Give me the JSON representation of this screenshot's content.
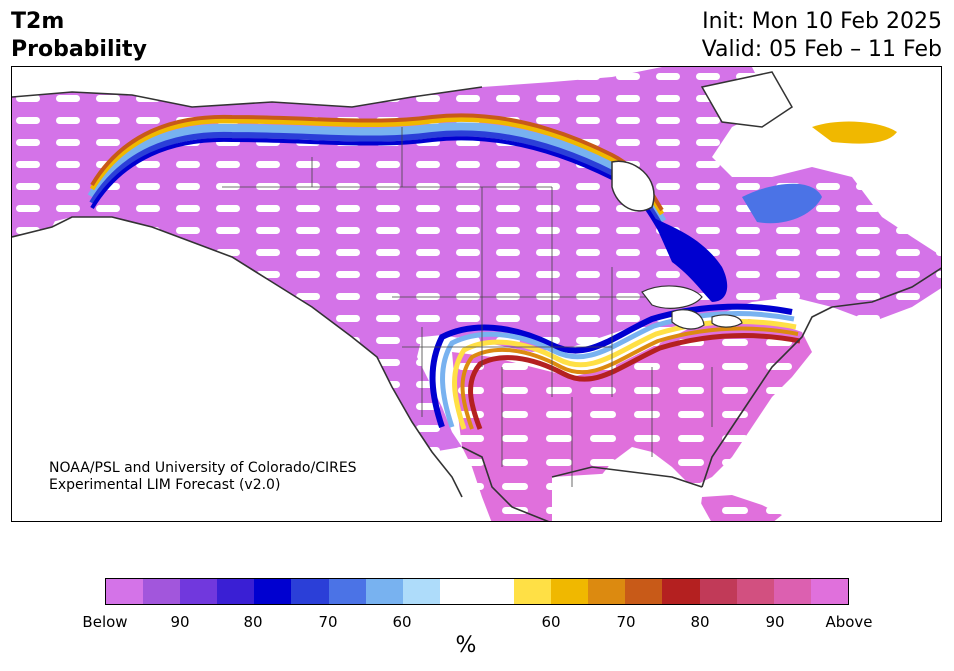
{
  "header": {
    "variable": "T2m",
    "product": "Probability",
    "init": "Init: Mon 10 Feb 2025",
    "valid": "Valid: 05 Feb – 11 Feb"
  },
  "credit": {
    "line1": "NOAA/PSL and University of Colorado/CIRES",
    "line2": "Experimental LIM Forecast (v2.0)"
  },
  "colorbar": {
    "unit": "%",
    "ticks": [
      "Below",
      "90",
      "80",
      "70",
      "60",
      "60",
      "70",
      "80",
      "90",
      "Above"
    ],
    "colors": [
      "#d473e8",
      "#a256dc",
      "#7138dd",
      "#3a1fd4",
      "#0000d0",
      "#2b3fd8",
      "#4b73e6",
      "#78b2f0",
      "#aedcfa",
      "#ffffff",
      "#ffffff",
      "#ffe045",
      "#f0b800",
      "#dc8a10",
      "#c85a18",
      "#b42020",
      "#c13a58",
      "#d25080",
      "#dc60b0",
      "#e070dc"
    ],
    "below_color": "#d473e8",
    "above_color": "#e070dc"
  }
}
